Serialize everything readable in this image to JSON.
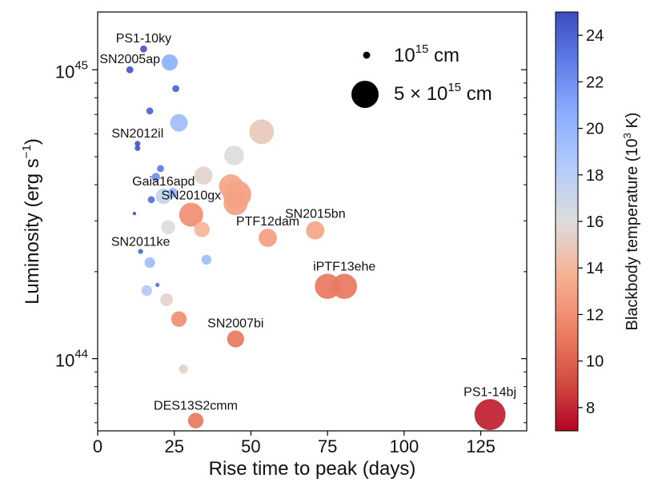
{
  "chart_data": {
    "type": "scatter",
    "xlabel": "Rise time to peak (days)",
    "ylabel_main": "Luminosity (erg s",
    "ylabel_sup": "−1",
    "ylabel_close": ")",
    "xlim": [
      0,
      140
    ],
    "ylim_log10": [
      43.75,
      45.2
    ],
    "x_ticks": [
      0,
      25,
      50,
      75,
      100,
      125
    ],
    "x_tick_labels": [
      "0",
      "25",
      "50",
      "75",
      "100",
      "125"
    ],
    "y_major_ticks": [
      {
        "value": 1e+44,
        "base": "10",
        "exp": "44"
      },
      {
        "value": 1e+45,
        "base": "10",
        "exp": "45"
      }
    ],
    "y_minor_ticks": [
      6e+43,
      7e+43,
      8e+43,
      9e+43,
      2e+44,
      3e+44,
      4e+44,
      5e+44,
      6e+44,
      7e+44,
      8e+44,
      9e+44
    ],
    "colorbar": {
      "label": "Blackbody temperature (10",
      "label_sup": "3",
      "label_tail": " K)",
      "range": [
        7,
        25
      ],
      "ticks": [
        "8",
        "10",
        "12",
        "14",
        "16",
        "18",
        "20",
        "22",
        "24"
      ],
      "colormap": "coolwarm_r"
    },
    "legend": [
      {
        "size_radius_1e15cm": 1,
        "base": "10",
        "exp": "15",
        "unit": " cm"
      },
      {
        "size_radius_1e15cm": 5,
        "pre": "5 × ",
        "base": "10",
        "exp": "15",
        "unit": " cm"
      }
    ],
    "points": [
      {
        "x": 15,
        "y": 1.18e+45,
        "r": 1.0,
        "t": 24.5,
        "label": "PS1-10ky"
      },
      {
        "x": 10.5,
        "y": 1e+45,
        "r": 1.0,
        "t": 24.5,
        "label": "SN2005ap"
      },
      {
        "x": 23.5,
        "y": 1.06e+45,
        "r": 2.3,
        "t": 20.5
      },
      {
        "x": 25.5,
        "y": 8.6e+44,
        "r": 1.0,
        "t": 24.0
      },
      {
        "x": 17,
        "y": 7.2e+44,
        "r": 1.0,
        "t": 24.0
      },
      {
        "x": 26.5,
        "y": 6.55e+44,
        "r": 2.5,
        "t": 19.5
      },
      {
        "x": 13,
        "y": 5.55e+44,
        "r": 0.8,
        "t": 24.5,
        "label": "SN2012il"
      },
      {
        "x": 13,
        "y": 5.35e+44,
        "r": 0.8,
        "t": 24.5
      },
      {
        "x": 53.5,
        "y": 6.1e+44,
        "r": 3.5,
        "t": 15.0
      },
      {
        "x": 44.5,
        "y": 5.05e+44,
        "r": 2.8,
        "t": 16.0
      },
      {
        "x": 20.5,
        "y": 4.55e+44,
        "r": 1.0,
        "t": 23.0
      },
      {
        "x": 19,
        "y": 4.25e+44,
        "r": 1.2,
        "t": 22.0
      },
      {
        "x": 34.5,
        "y": 4.3e+44,
        "r": 2.6,
        "t": 15.5
      },
      {
        "x": 43.5,
        "y": 3.95e+44,
        "r": 3.4,
        "t": 13.2
      },
      {
        "x": 45.5,
        "y": 3.7e+44,
        "r": 4.0,
        "t": 12.8
      },
      {
        "x": 45,
        "y": 3.45e+44,
        "r": 3.4,
        "t": 13.0
      },
      {
        "x": 24.5,
        "y": 3.75e+44,
        "r": 1.4,
        "t": 20.0
      },
      {
        "x": 21.5,
        "y": 3.65e+44,
        "r": 2.2,
        "t": 17.5,
        "label": "Gaia16apd"
      },
      {
        "x": 17.5,
        "y": 3.55e+44,
        "r": 1.0,
        "t": 23.5
      },
      {
        "x": 12,
        "y": 3.18e+44,
        "r": 0.5,
        "t": 24.5
      },
      {
        "x": 30.5,
        "y": 3.15e+44,
        "r": 3.4,
        "t": 12.0,
        "label": "SN2010gx"
      },
      {
        "x": 23,
        "y": 2.85e+44,
        "r": 2.0,
        "t": 16.0
      },
      {
        "x": 34,
        "y": 2.8e+44,
        "r": 2.2,
        "t": 14.0
      },
      {
        "x": 71,
        "y": 2.78e+44,
        "r": 2.6,
        "t": 13.2,
        "label": "SN2015bn"
      },
      {
        "x": 55.5,
        "y": 2.62e+44,
        "r": 2.6,
        "t": 12.8,
        "label": "PTF12dam"
      },
      {
        "x": 14,
        "y": 2.35e+44,
        "r": 0.7,
        "t": 24.0,
        "label": "SN2011ke"
      },
      {
        "x": 35.5,
        "y": 2.2e+44,
        "r": 1.4,
        "t": 19.5
      },
      {
        "x": 17,
        "y": 2.15e+44,
        "r": 1.5,
        "t": 19.5
      },
      {
        "x": 75,
        "y": 1.78e+44,
        "r": 3.6,
        "t": 11.0
      },
      {
        "x": 80.5,
        "y": 1.78e+44,
        "r": 3.6,
        "t": 11.0,
        "label": "iPTF13ehe"
      },
      {
        "x": 19.5,
        "y": 1.8e+44,
        "r": 0.6,
        "t": 23.5
      },
      {
        "x": 16,
        "y": 1.72e+44,
        "r": 1.5,
        "t": 18.5
      },
      {
        "x": 22.5,
        "y": 1.6e+44,
        "r": 1.8,
        "t": 15.5
      },
      {
        "x": 26.5,
        "y": 1.37e+44,
        "r": 2.2,
        "t": 12.0
      },
      {
        "x": 45,
        "y": 1.17e+44,
        "r": 2.4,
        "t": 11.0,
        "label": "SN2007bi"
      },
      {
        "x": 28,
        "y": 9.2e+43,
        "r": 1.3,
        "t": 15.5
      },
      {
        "x": 32,
        "y": 6.1e+43,
        "r": 2.2,
        "t": 11.0,
        "label": "DES13S2cmm"
      },
      {
        "x": 128,
        "y": 6.4e+43,
        "r": 4.4,
        "t": 7.8,
        "label": "PS1-14bj"
      }
    ]
  }
}
